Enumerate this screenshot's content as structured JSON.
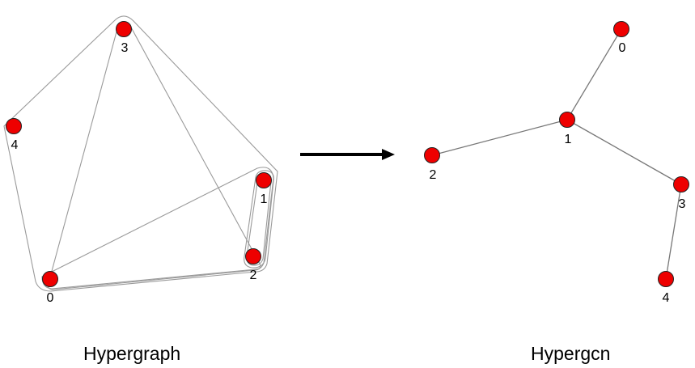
{
  "left_panel": {
    "caption": "Hypergraph",
    "nodes": [
      {
        "id": "0",
        "label": "0"
      },
      {
        "id": "1",
        "label": "1"
      },
      {
        "id": "2",
        "label": "2"
      },
      {
        "id": "3",
        "label": "3"
      },
      {
        "id": "4",
        "label": "4"
      }
    ],
    "hyperedges": [
      {
        "members": [
          "4",
          "3",
          "2",
          "1",
          "0"
        ]
      },
      {
        "members": [
          "0",
          "3",
          "2"
        ]
      },
      {
        "members": [
          "0",
          "1",
          "2"
        ]
      },
      {
        "members": [
          "1",
          "2"
        ]
      }
    ]
  },
  "arrow": {
    "direction": "right"
  },
  "right_panel": {
    "caption": "Hypergcn",
    "nodes": [
      {
        "id": "0",
        "label": "0"
      },
      {
        "id": "1",
        "label": "1"
      },
      {
        "id": "2",
        "label": "2"
      },
      {
        "id": "3",
        "label": "3"
      },
      {
        "id": "4",
        "label": "4"
      }
    ],
    "edges": [
      [
        "0",
        "1"
      ],
      [
        "1",
        "2"
      ],
      [
        "1",
        "3"
      ],
      [
        "3",
        "4"
      ]
    ]
  },
  "colors": {
    "node_fill": "#ee0000",
    "hyperedge": "#9a9a9a",
    "edge": "#777777",
    "arrow": "#000000"
  }
}
